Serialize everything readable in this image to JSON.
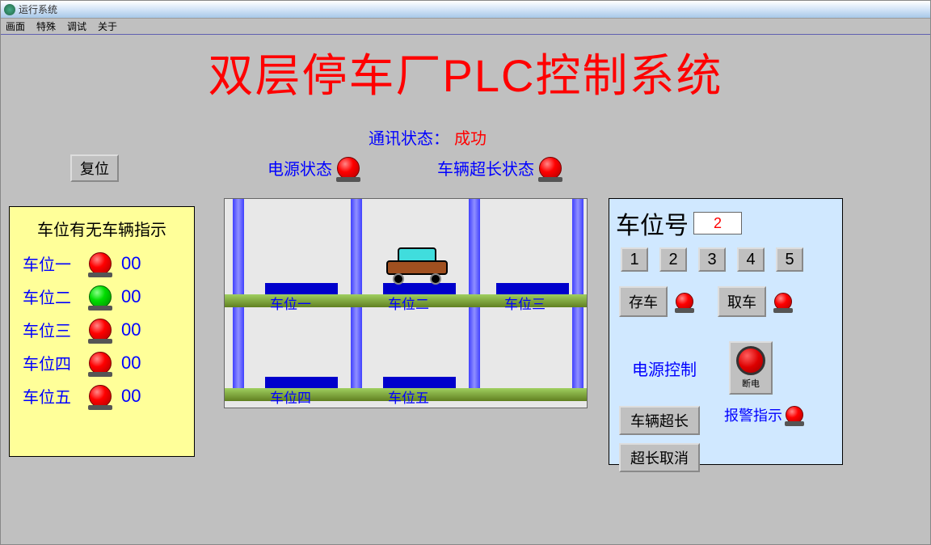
{
  "window": {
    "title": "运行系统"
  },
  "menu": {
    "screen": "画面",
    "special": "特殊",
    "debug": "调试",
    "about": "关于"
  },
  "title": "双层停车厂PLC控制系统",
  "comm": {
    "label": "通讯状态：",
    "value": "成功"
  },
  "reset": "复位",
  "power_state": "电源状态",
  "over_state": "车辆超长状态",
  "left": {
    "title": "车位有无车辆指示",
    "slots": [
      {
        "label": "车位一",
        "value": "00",
        "led": "red"
      },
      {
        "label": "车位二",
        "value": "00",
        "led": "green"
      },
      {
        "label": "车位三",
        "value": "00",
        "led": "red"
      },
      {
        "label": "车位四",
        "value": "00",
        "led": "red"
      },
      {
        "label": "车位五",
        "value": "00",
        "led": "red"
      }
    ]
  },
  "center": {
    "slots_top": [
      "车位一",
      "车位二",
      "车位三"
    ],
    "slots_bot": [
      "车位四",
      "车位五"
    ],
    "car_slot": 1,
    "colors": {
      "pillar": "#5a5aff",
      "floor1": "#a0d060",
      "floor2": "#608020",
      "platform": "#0000cc"
    }
  },
  "right": {
    "slot_label": "车位号",
    "slot_value": "2",
    "numbers": [
      "1",
      "2",
      "3",
      "4",
      "5"
    ],
    "store": "存车",
    "retrieve": "取车",
    "power_label": "电源控制",
    "power_btn": "断电",
    "overlength": "车辆超长",
    "over_cancel": "超长取消",
    "alarm": "报警指示"
  }
}
